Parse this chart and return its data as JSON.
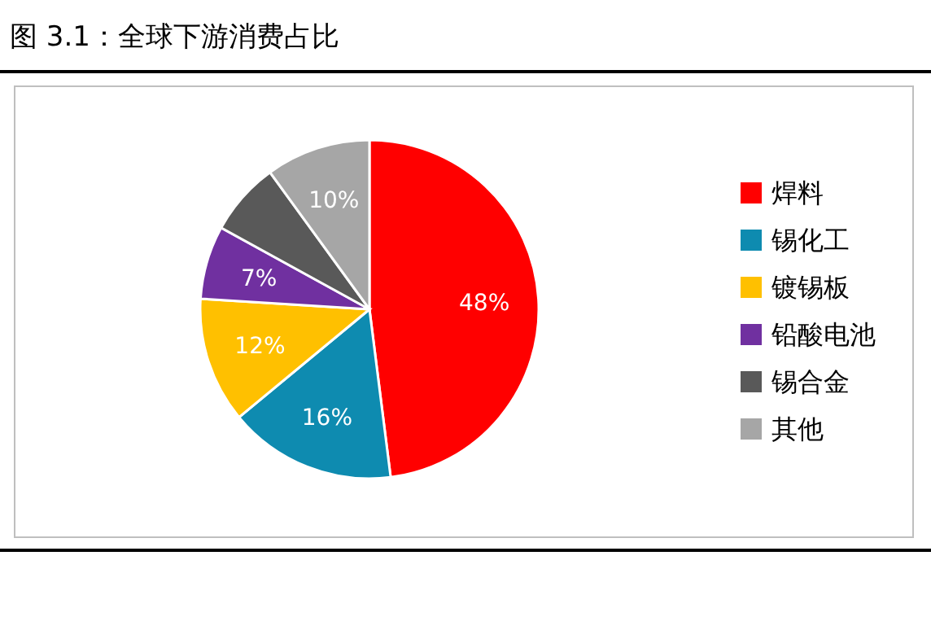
{
  "chart_data": {
    "type": "pie",
    "title": "图 3.1：全球下游消费占比",
    "categories": [
      "焊料",
      "锡化工",
      "镀锡板",
      "铅酸电池",
      "锡合金",
      "其他"
    ],
    "values": [
      48,
      16,
      12,
      7,
      7,
      10
    ],
    "colors": [
      "#ff0000",
      "#0e8bb0",
      "#ffc000",
      "#7030a0",
      "#595959",
      "#a6a6a6"
    ],
    "value_labels": [
      "48%",
      "16%",
      "12%",
      "7%",
      null,
      "10%"
    ],
    "legend": "right"
  }
}
